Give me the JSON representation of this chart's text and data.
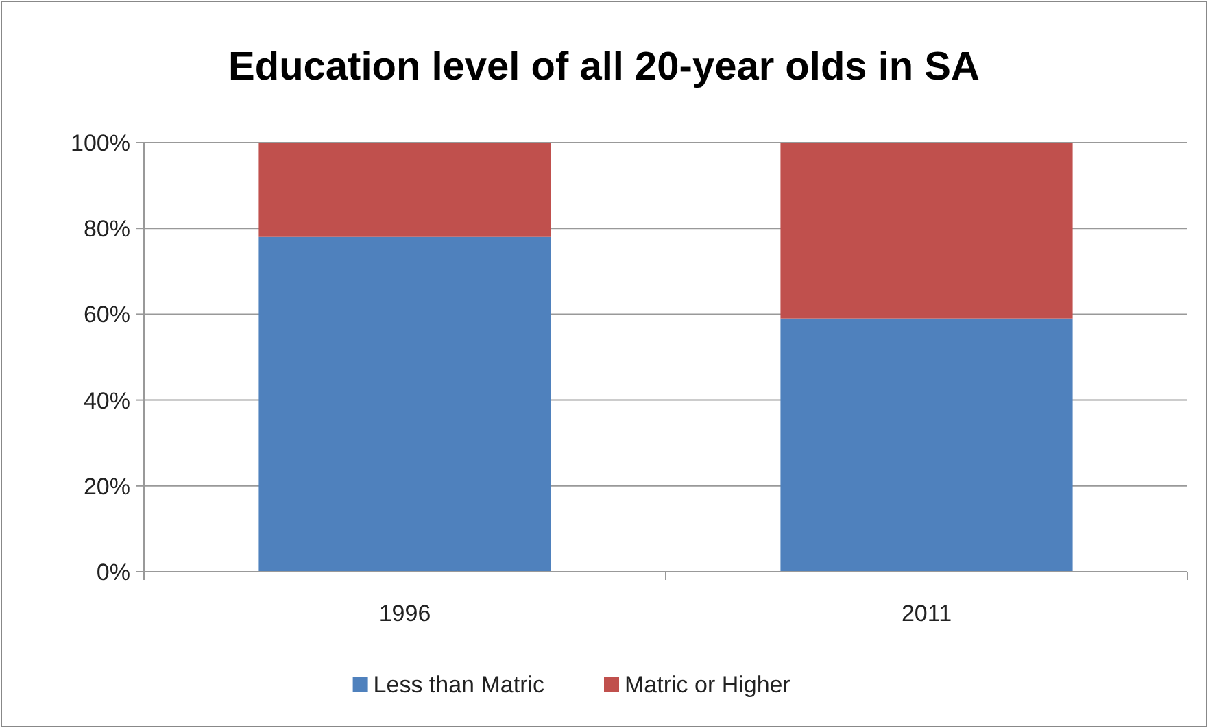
{
  "chart_data": {
    "type": "bar",
    "title": "Education level of all 20-year olds in SA",
    "categories": [
      "1996",
      "2011"
    ],
    "stacked": true,
    "series": [
      {
        "name": "Less than Matric",
        "color": "#4f81bd",
        "values": [
          78,
          59
        ]
      },
      {
        "name": "Matric or Higher",
        "color": "#c0504d",
        "values": [
          22,
          41
        ]
      }
    ],
    "ylim": [
      0,
      100
    ],
    "yticks": [
      {
        "value": 0,
        "label": "0%"
      },
      {
        "value": 20,
        "label": "20%"
      },
      {
        "value": 40,
        "label": "40%"
      },
      {
        "value": 60,
        "label": "60%"
      },
      {
        "value": 80,
        "label": "80%"
      },
      {
        "value": 100,
        "label": "100%"
      }
    ],
    "grid": "y",
    "legend": "bottom"
  }
}
